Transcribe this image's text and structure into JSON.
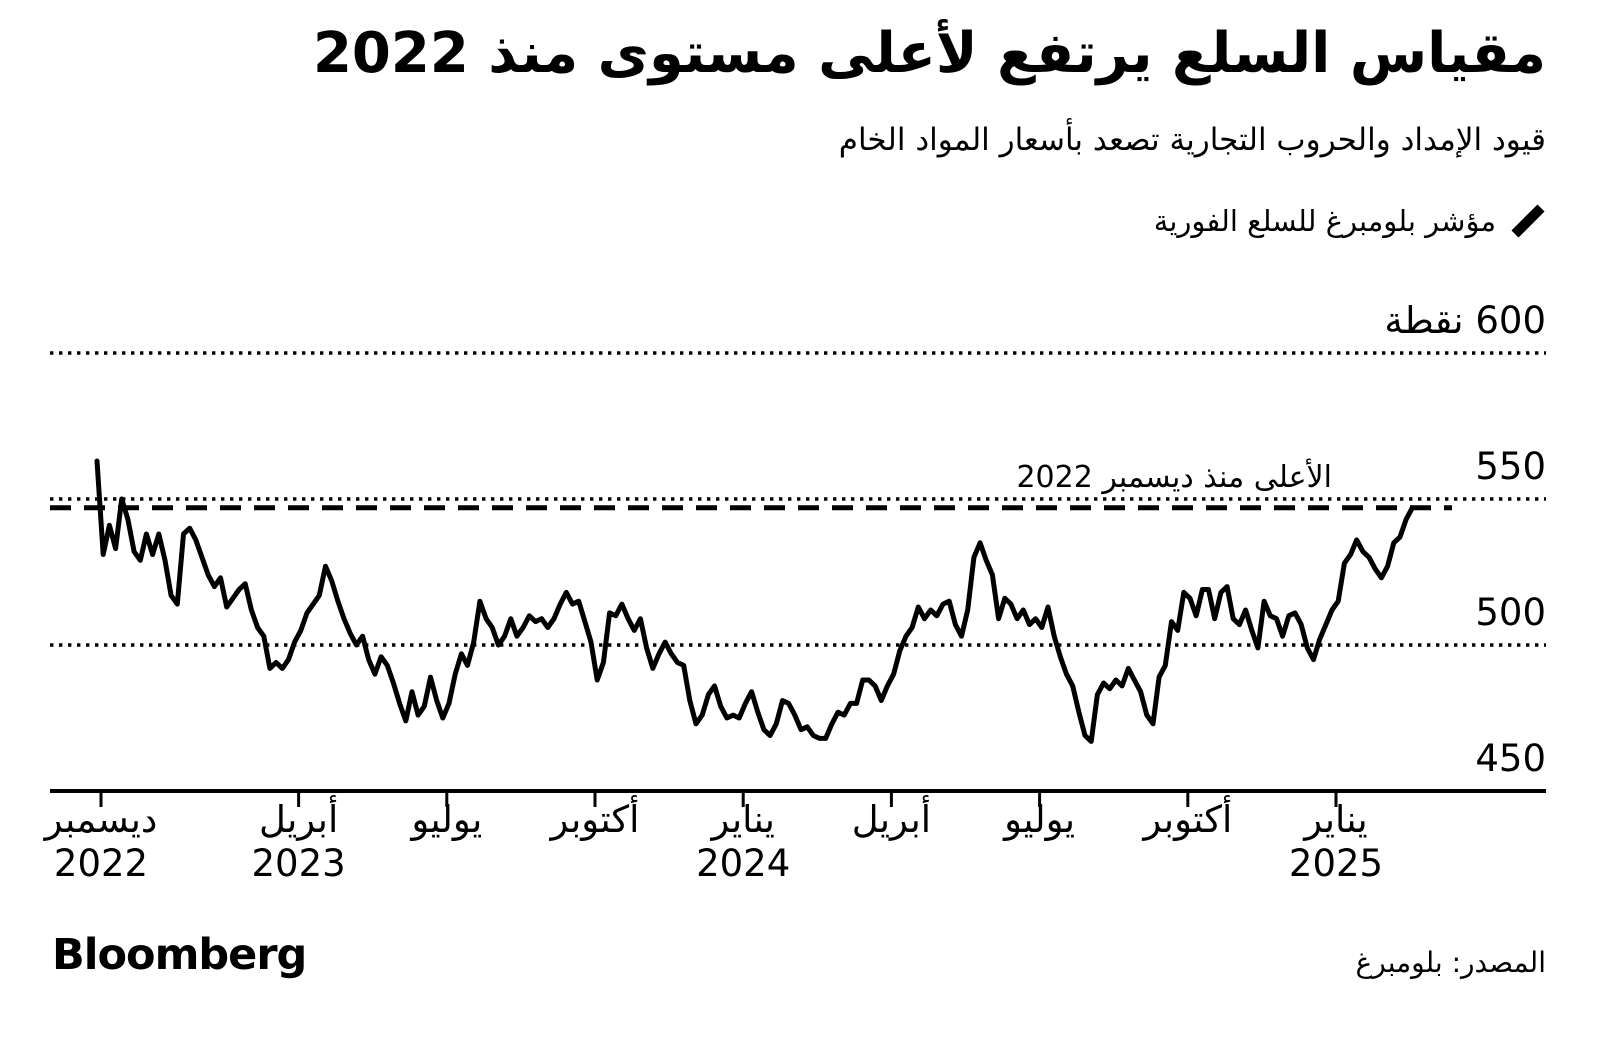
{
  "header": {
    "title": "مقياس السلع يرتفع لأعلى مستوى منذ 2022",
    "subtitle": "قيود الإمداد والحروب التجارية تصعد بأسعار المواد الخام"
  },
  "legend": {
    "label": "مؤشر بلومبرغ للسلع الفورية"
  },
  "footer": {
    "logo": "Bloomberg",
    "source": "المصدر: بلومبرغ"
  },
  "colors": {
    "line": "#000000",
    "text": "#000000",
    "background": "#ffffff"
  },
  "chart_data": {
    "type": "line",
    "title": "مقياس السلع يرتفع لأعلى مستوى منذ 2022",
    "subtitle": "قيود الإمداد والحروب التجارية تصعد بأسعار المواد الخام",
    "unit_label": "نقطة",
    "ylim": [
      450,
      600
    ],
    "grid": "dotted-horizontal",
    "legend_position": "top-right",
    "y_ticks": [
      {
        "value": 450,
        "label": "450"
      },
      {
        "value": 500,
        "label": "500"
      },
      {
        "value": 550,
        "label": "550"
      },
      {
        "value": 600,
        "label": "600 نقطة"
      }
    ],
    "x_ticks": [
      {
        "month_index": 0,
        "label": "ديسمبر",
        "year": "2022"
      },
      {
        "month_index": 4,
        "label": "أبريل",
        "year": "2023"
      },
      {
        "month_index": 7,
        "label": "يوليو"
      },
      {
        "month_index": 10,
        "label": "أكتوبر"
      },
      {
        "month_index": 13,
        "label": "يناير",
        "year": "2024"
      },
      {
        "month_index": 16,
        "label": "أبريل"
      },
      {
        "month_index": 19,
        "label": "يوليو"
      },
      {
        "month_index": 22,
        "label": "أكتوبر"
      },
      {
        "month_index": 25,
        "label": "يناير",
        "year": "2025"
      }
    ],
    "reference_line": {
      "value": 547,
      "label": "الأعلى منذ ديسمبر 2022"
    },
    "series": [
      {
        "name": "مؤشر بلومبرغ للسلع الفورية",
        "start_month": -0.08,
        "step_month": 0.125,
        "values": [
          563,
          531,
          541,
          533,
          550,
          543,
          532,
          529,
          538,
          531,
          538,
          529,
          517,
          514,
          538,
          540,
          536,
          530,
          524,
          520,
          523,
          513,
          516,
          519,
          521,
          512,
          506,
          503,
          492,
          494,
          492,
          495,
          501,
          505,
          511,
          514,
          517,
          527,
          522,
          515,
          509,
          504,
          500,
          503,
          495,
          490,
          496,
          493,
          487,
          480,
          474,
          484,
          476,
          479,
          489,
          481,
          475,
          480,
          490,
          497,
          493,
          501,
          515,
          509,
          506,
          500,
          503,
          509,
          503,
          506,
          510,
          508,
          509,
          506,
          509,
          514,
          518,
          514,
          515,
          508,
          501,
          488,
          494,
          511,
          510,
          514,
          509,
          505,
          509,
          499,
          492,
          497,
          501,
          497,
          494,
          493,
          481,
          473,
          476,
          483,
          486,
          479,
          475,
          476,
          475,
          480,
          484,
          477,
          471,
          469,
          473,
          481,
          480,
          476,
          471,
          472,
          469,
          468,
          468,
          473,
          477,
          476,
          480,
          480,
          488,
          488,
          486,
          481,
          486,
          490,
          498,
          503,
          506,
          513,
          509,
          512,
          510,
          514,
          515,
          507,
          503,
          512,
          530,
          535,
          529,
          524,
          509,
          516,
          514,
          509,
          512,
          507,
          509,
          506,
          513,
          503,
          496,
          490,
          486,
          477,
          469,
          467,
          483,
          487,
          485,
          488,
          486,
          492,
          488,
          484,
          476,
          473,
          489,
          493,
          508,
          505,
          518,
          516,
          510,
          519,
          519,
          509,
          518,
          520,
          509,
          507,
          512,
          505,
          499,
          515,
          510,
          509,
          503,
          510,
          511,
          507,
          499,
          495,
          502,
          507,
          512,
          515,
          528,
          531,
          536,
          532,
          530,
          526,
          523,
          527,
          535,
          537,
          543,
          547
        ]
      }
    ]
  }
}
